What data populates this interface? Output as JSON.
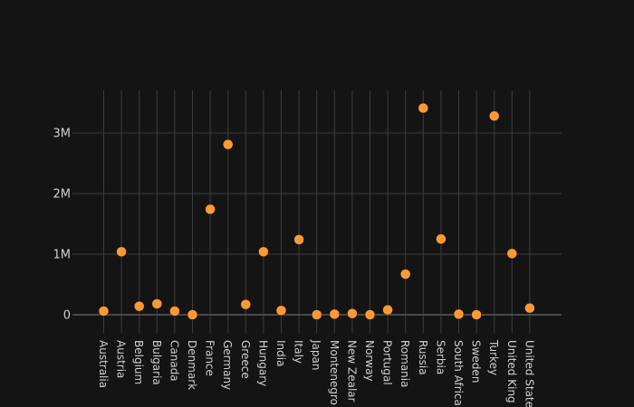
{
  "colors": {
    "background": "#141414",
    "plot_background": "#141414",
    "grid": "#3d3d3d",
    "zero_line": "#5a5a5a",
    "marker": "#ff9a33",
    "text": "#d0d0d0"
  },
  "chart_data": {
    "type": "scatter",
    "title": "",
    "xlabel": "",
    "ylabel": "",
    "grid": true,
    "legend": "none",
    "ylim": [
      -300000,
      3700000
    ],
    "yticks": [
      0,
      1000000,
      2000000,
      3000000
    ],
    "ytick_labels": [
      "0",
      "1M",
      "2M",
      "3M"
    ],
    "categories": [
      "Australia",
      "Austria",
      "Belgium",
      "Bulgaria",
      "Canada",
      "Denmark",
      "France",
      "Germany",
      "Greece",
      "Hungary",
      "India",
      "Italy",
      "Japan",
      "Montenegro",
      "New Zealand",
      "Norway",
      "Portugal",
      "Romania",
      "Russia",
      "Serbia",
      "South Africa",
      "Sweden",
      "Turkey",
      "United Kingdom",
      "United States"
    ],
    "category_labels": [
      "Australia",
      "Austria",
      "Belgium",
      "Bulgaria",
      "Canada",
      "Denmark",
      "France",
      "Germany",
      "Greece",
      "Hungary",
      "India",
      "Italy",
      "Japan",
      "Montenegro",
      "New Zealar",
      "Norway",
      "Portugal",
      "Romania",
      "Russia",
      "Serbia",
      "South Africa",
      "Sweden",
      "Turkey",
      "United King",
      "United State"
    ],
    "values": [
      60000,
      1040000,
      140000,
      180000,
      60000,
      0,
      1740000,
      2810000,
      170000,
      1040000,
      70000,
      1240000,
      0,
      10000,
      20000,
      0,
      80000,
      670000,
      3410000,
      1250000,
      10000,
      0,
      3280000,
      1010000,
      110000
    ]
  }
}
